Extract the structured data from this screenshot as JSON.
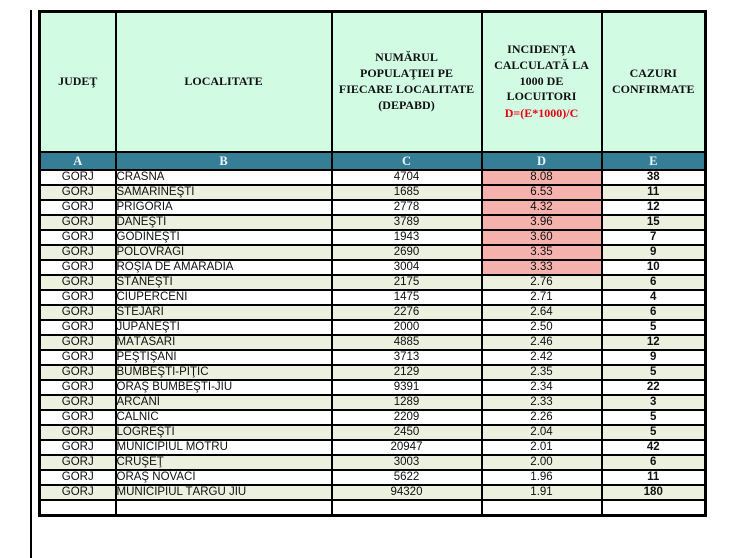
{
  "colors": {
    "header_bg": "#d2fbe4",
    "band_bg": "#357e95",
    "band_text": "#e9f7fb",
    "row_stripe_bg": "#ecf0df",
    "row_bg": "#ffffff",
    "highlight_pink": "#f5b2ad",
    "grid_border": "#000000",
    "formula_red": "#e80011"
  },
  "table": {
    "columns": [
      {
        "letter": "A",
        "title": "JUDEŢ"
      },
      {
        "letter": "B",
        "title": "LOCALITATE"
      },
      {
        "letter": "C",
        "title": "NUMĂRUL\nPOPULAŢIEI PE\nFIECARE LOCALITATE\n(DEPABD)"
      },
      {
        "letter": "D",
        "title": "INCIDENŢA\nCALCULATĂ LA\n1000 DE\nLOCUITORI",
        "formula": "D=(E*1000)/C"
      },
      {
        "letter": "E",
        "title": "CAZURI\nCONFIRMATE"
      }
    ],
    "rows": [
      {
        "judet": "GORJ",
        "localitate": "CRASNA",
        "populatie": "4704",
        "incidenta": "8.08",
        "cazuri": "38",
        "highlight": true
      },
      {
        "judet": "GORJ",
        "localitate": "SAMARINEŞTI",
        "populatie": "1685",
        "incidenta": "6.53",
        "cazuri": "11",
        "highlight": true
      },
      {
        "judet": "GORJ",
        "localitate": "PRIGORIA",
        "populatie": "2778",
        "incidenta": "4.32",
        "cazuri": "12",
        "highlight": true
      },
      {
        "judet": "GORJ",
        "localitate": "DĂNEŞTI",
        "populatie": "3789",
        "incidenta": "3.96",
        "cazuri": "15",
        "highlight": true
      },
      {
        "judet": "GORJ",
        "localitate": "GODINEŞTI",
        "populatie": "1943",
        "incidenta": "3.60",
        "cazuri": "7",
        "highlight": true
      },
      {
        "judet": "GORJ",
        "localitate": "POLOVRAGI",
        "populatie": "2690",
        "incidenta": "3.35",
        "cazuri": "9",
        "highlight": true
      },
      {
        "judet": "GORJ",
        "localitate": "ROŞIA DE AMARADIA",
        "populatie": "3004",
        "incidenta": "3.33",
        "cazuri": "10",
        "highlight": true
      },
      {
        "judet": "GORJ",
        "localitate": "STĂNEŞTI",
        "populatie": "2175",
        "incidenta": "2.76",
        "cazuri": "6",
        "highlight": false
      },
      {
        "judet": "GORJ",
        "localitate": "CIUPERCENI",
        "populatie": "1475",
        "incidenta": "2.71",
        "cazuri": "4",
        "highlight": false
      },
      {
        "judet": "GORJ",
        "localitate": "STEJARI",
        "populatie": "2276",
        "incidenta": "2.64",
        "cazuri": "6",
        "highlight": false
      },
      {
        "judet": "GORJ",
        "localitate": "JUPÂNEŞTI",
        "populatie": "2000",
        "incidenta": "2.50",
        "cazuri": "5",
        "highlight": false
      },
      {
        "judet": "GORJ",
        "localitate": "MĂTĂSARI",
        "populatie": "4885",
        "incidenta": "2.46",
        "cazuri": "12",
        "highlight": false
      },
      {
        "judet": "GORJ",
        "localitate": "PEŞTIŞANI",
        "populatie": "3713",
        "incidenta": "2.42",
        "cazuri": "9",
        "highlight": false
      },
      {
        "judet": "GORJ",
        "localitate": "BUMBEŞTI-PIŢIC",
        "populatie": "2129",
        "incidenta": "2.35",
        "cazuri": "5",
        "highlight": false
      },
      {
        "judet": "GORJ",
        "localitate": "ORAŞ BUMBEŞTI-JIU",
        "populatie": "9391",
        "incidenta": "2.34",
        "cazuri": "22",
        "highlight": false
      },
      {
        "judet": "GORJ",
        "localitate": "ARCANI",
        "populatie": "1289",
        "incidenta": "2.33",
        "cazuri": "3",
        "highlight": false
      },
      {
        "judet": "GORJ",
        "localitate": "CÂLNIC",
        "populatie": "2209",
        "incidenta": "2.26",
        "cazuri": "5",
        "highlight": false
      },
      {
        "judet": "GORJ",
        "localitate": "LOGREŞTI",
        "populatie": "2450",
        "incidenta": "2.04",
        "cazuri": "5",
        "highlight": false
      },
      {
        "judet": "GORJ",
        "localitate": "MUNICIPIUL MOTRU",
        "populatie": "20947",
        "incidenta": "2.01",
        "cazuri": "42",
        "highlight": false
      },
      {
        "judet": "GORJ",
        "localitate": "CRUŞEŢ",
        "populatie": "3003",
        "incidenta": "2.00",
        "cazuri": "6",
        "highlight": false
      },
      {
        "judet": "GORJ",
        "localitate": "ORAŞ NOVACI",
        "populatie": "5622",
        "incidenta": "1.96",
        "cazuri": "11",
        "highlight": false
      },
      {
        "judet": "GORJ",
        "localitate": "MUNICIPIUL TÂRGU JIU",
        "populatie": "94320",
        "incidenta": "1.91",
        "cazuri": "180",
        "highlight": false
      },
      {
        "judet": "",
        "localitate": "",
        "populatie": "",
        "incidenta": "",
        "cazuri": "",
        "highlight": false
      }
    ]
  }
}
